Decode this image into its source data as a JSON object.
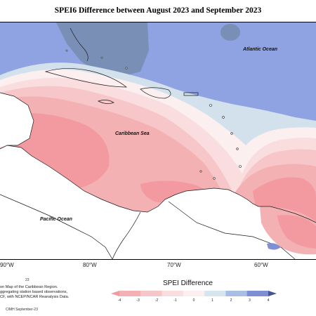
{
  "title": "SPEI6 Difference between August 2023 and September 2023",
  "map": {
    "ocean_labels": {
      "atlantic": "Atlantic Ocean",
      "caribbean": "Caribbean Sea",
      "pacific": "Pacific Ocean"
    },
    "longitude_ticks": [
      "90°W",
      "80°W",
      "70°W",
      "60°W"
    ],
    "colors": {
      "ocean_blue": "#8fa3e3",
      "land_white": "#ffffff",
      "coastline": "#1a1a1a"
    }
  },
  "caption": {
    "number": "23",
    "lines": [
      "on Map of the Caribbean Region.",
      "ggregating station based observations,",
      "CF, with NCEP/NCAR Reanalysis Data."
    ],
    "footer": "CIMH September-23"
  },
  "legend": {
    "title": "SPEI Difference",
    "ticks": [
      "-4",
      "-3",
      "-2",
      "-1",
      "0",
      "1",
      "2",
      "3",
      "4"
    ],
    "colors": [
      "#f29a9f",
      "#f4b1b4",
      "#f6c6c8",
      "#fadedf",
      "#fbeff0",
      "#d6e6ee",
      "#a8bfe3",
      "#7e8fd6",
      "#4a5494"
    ]
  }
}
